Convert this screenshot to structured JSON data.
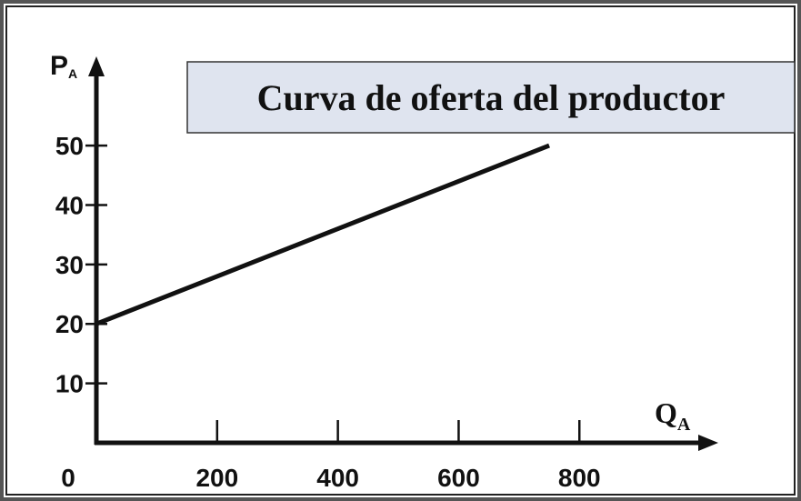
{
  "chart_data": {
    "type": "line",
    "title": "Curva de oferta del productor",
    "x_label": {
      "main": "Q",
      "sub": "A"
    },
    "y_label": {
      "main": "P",
      "sub": "A"
    },
    "origin_label": "0",
    "x": [
      0,
      750
    ],
    "series": [
      {
        "name": "Oferta",
        "color": "#111111",
        "values": [
          20,
          50
        ]
      }
    ],
    "xlim": [
      0,
      1030
    ],
    "ylim": [
      0,
      65
    ],
    "xticks": [
      200,
      400,
      600,
      800
    ],
    "yticks": [
      10,
      20,
      30,
      40,
      50
    ]
  }
}
